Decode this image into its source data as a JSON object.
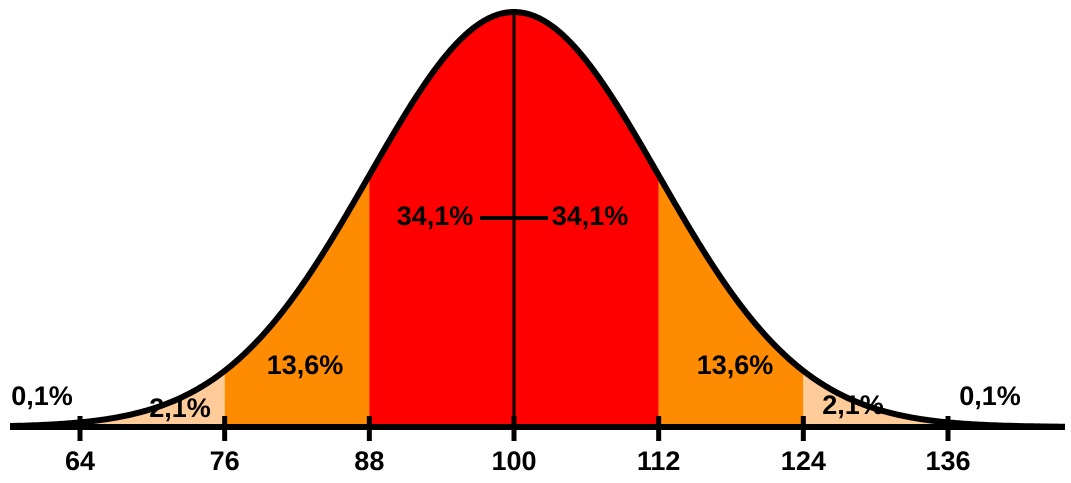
{
  "chart_data": {
    "type": "normal-bands",
    "xticks": [
      64,
      76,
      88,
      100,
      112,
      124,
      136
    ],
    "segments": {
      "values": [
        0.1,
        2.1,
        13.6,
        34.1,
        34.1,
        13.6,
        2.1,
        0.1
      ],
      "value_labels": [
        "0,1%",
        "2,1%",
        "13,6%",
        "34,1%",
        "34,1%",
        "13,6%",
        "2,1%",
        "0,1%"
      ],
      "colors": [
        "#ffffff",
        "#ffcc99",
        "#ff8c00",
        "#ff0000",
        "#ff0000",
        "#ff8c00",
        "#ffcc99",
        "#ffffff"
      ]
    }
  }
}
